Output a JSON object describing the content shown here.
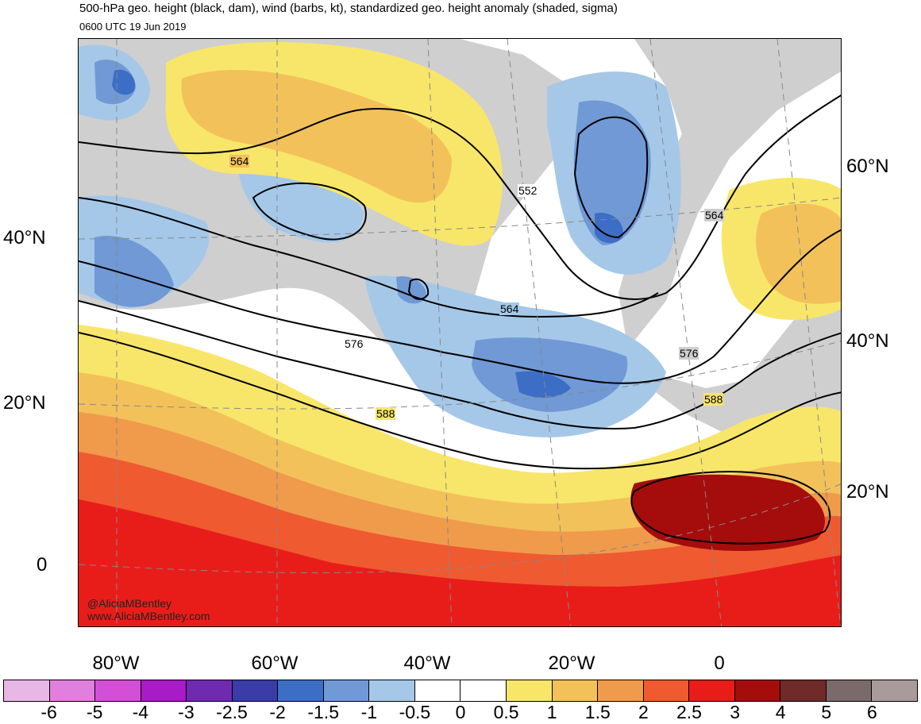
{
  "header": {
    "title": "500-hPa geo. height (black, dam), wind (barbs, kt), standardized geo. height anomaly (shaded, sigma)",
    "subtitle": "0600 UTC 19 Jun 2019"
  },
  "map": {
    "contour_labels": [
      "564",
      "552",
      "564",
      "564",
      "576",
      "576",
      "588",
      "588"
    ],
    "lat_labels_left": [
      "40°N",
      "20°N",
      "0"
    ],
    "lat_labels_right": [
      "60°N",
      "40°N",
      "20°N"
    ],
    "lon_labels": [
      "80°W",
      "60°W",
      "40°W",
      "20°W",
      "0"
    ],
    "credit": [
      "@AliciaMBentley",
      "www.AliciaMBentley.com"
    ]
  },
  "colorbar": {
    "colors": [
      "#e8b7e6",
      "#e07fdd",
      "#d34fd6",
      "#a81bc6",
      "#6f2ab0",
      "#3a3ca8",
      "#3c6ec6",
      "#7099d6",
      "#a5c8e8",
      "#ffffff",
      "#ffffff",
      "#f8e66a",
      "#f3c15a",
      "#f09a4c",
      "#ef5a30",
      "#e81d1a",
      "#a50c0c",
      "#6f2a2a",
      "#7a6a6a",
      "#a99b9b"
    ],
    "labels": [
      "-6",
      "-5",
      "-4",
      "-3",
      "-2.5",
      "-2",
      "-1.5",
      "-1",
      "-0.5",
      "0",
      "0.5",
      "1",
      "1.5",
      "2",
      "2.5",
      "3",
      "4",
      "5",
      "6"
    ]
  }
}
